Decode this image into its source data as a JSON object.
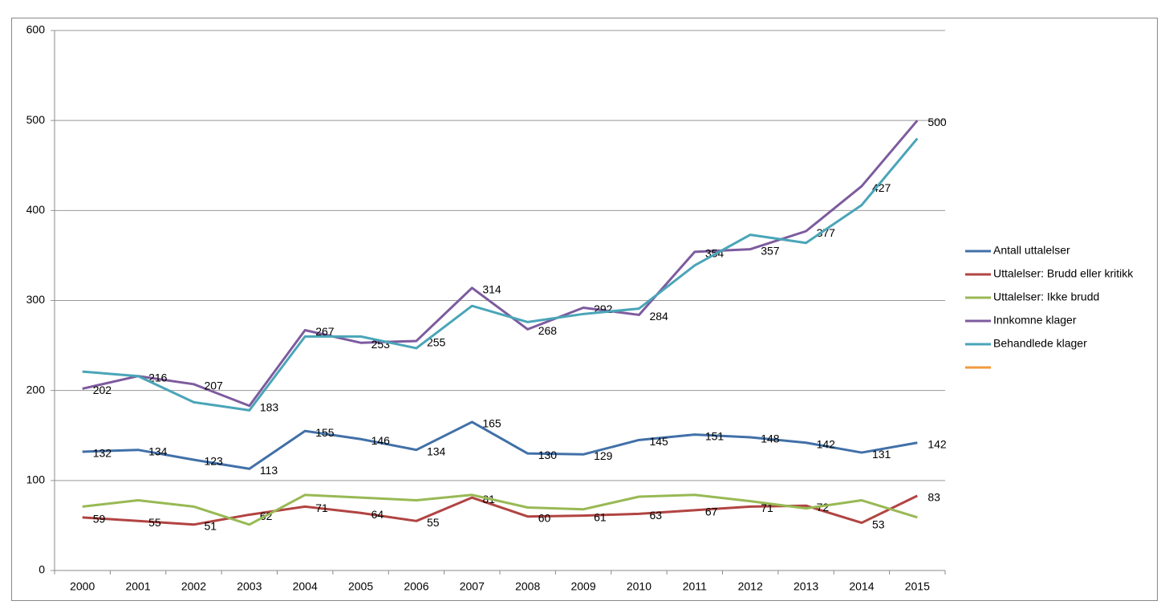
{
  "chart_data": {
    "type": "line",
    "categories": [
      "2000",
      "2001",
      "2002",
      "2003",
      "2004",
      "2005",
      "2006",
      "2007",
      "2008",
      "2009",
      "2010",
      "2011",
      "2012",
      "2013",
      "2014",
      "2015"
    ],
    "ylim": [
      0,
      600
    ],
    "yticks": [
      0,
      100,
      200,
      300,
      400,
      500,
      600
    ],
    "grid": true,
    "legend": "right",
    "series": [
      {
        "name": "Antall uttalelser",
        "color": "#4170a8",
        "labels": true,
        "values": [
          132,
          134,
          123,
          113,
          155,
          146,
          134,
          165,
          130,
          129,
          145,
          151,
          148,
          142,
          131,
          142
        ]
      },
      {
        "name": "Uttalelser: Brudd eller kritikk",
        "color": "#b14442",
        "labels": true,
        "values": [
          59,
          55,
          51,
          62,
          71,
          64,
          55,
          81,
          60,
          61,
          63,
          67,
          71,
          72,
          53,
          83
        ]
      },
      {
        "name": "Uttalelser: Ikke brudd",
        "color": "#98b954",
        "labels": false,
        "values": [
          71,
          78,
          71,
          51,
          84,
          81,
          78,
          84,
          70,
          68,
          82,
          84,
          77,
          69,
          78,
          59
        ]
      },
      {
        "name": "Innkomne klager",
        "color": "#7d5b9e",
        "labels": true,
        "values": [
          202,
          216,
          207,
          183,
          267,
          253,
          255,
          314,
          268,
          292,
          284,
          354,
          357,
          377,
          427,
          500
        ]
      },
      {
        "name": "Behandlede klager",
        "color": "#4aa5b8",
        "labels": false,
        "values": [
          221,
          216,
          187,
          178,
          260,
          260,
          247,
          294,
          276,
          285,
          291,
          339,
          373,
          364,
          406,
          480
        ]
      },
      {
        "color": "#f39a3e",
        "labels": false,
        "values": [
          null,
          null,
          null,
          null,
          null,
          null,
          null,
          null,
          null,
          null,
          null,
          null,
          null,
          null,
          null,
          null
        ]
      }
    ]
  }
}
